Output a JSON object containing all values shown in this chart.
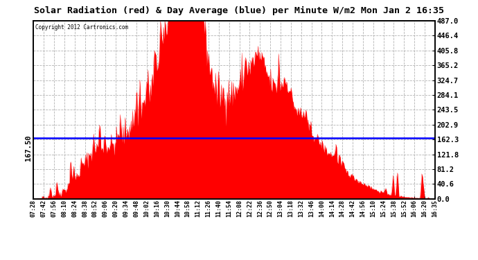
{
  "title": "Solar Radiation (red) & Day Average (blue) per Minute W/m2 Mon Jan 2 16:35",
  "copyright": "Copyright 2012 Cartronics.com",
  "y_min": 0.0,
  "y_max": 487.0,
  "y_ticks": [
    0.0,
    40.6,
    81.2,
    121.8,
    162.3,
    202.9,
    243.5,
    284.1,
    324.7,
    365.2,
    405.8,
    446.4,
    487.0
  ],
  "blue_line_y": 167.5,
  "blue_line_label": "167.50",
  "fill_color": "#FF0000",
  "line_color": "#0000FF",
  "bg_color": "#FFFFFF",
  "grid_color": "#AAAAAA",
  "x_tick_labels": [
    "07:28",
    "07:42",
    "07:56",
    "08:10",
    "08:24",
    "08:38",
    "08:52",
    "09:06",
    "09:20",
    "09:34",
    "09:48",
    "10:02",
    "10:16",
    "10:30",
    "10:44",
    "10:58",
    "11:12",
    "11:26",
    "11:40",
    "11:54",
    "12:08",
    "12:22",
    "12:36",
    "12:50",
    "13:04",
    "13:18",
    "13:32",
    "13:46",
    "14:00",
    "14:14",
    "14:28",
    "14:42",
    "14:56",
    "15:10",
    "15:24",
    "15:38",
    "15:52",
    "16:06",
    "16:20",
    "16:35"
  ],
  "total_minutes": 547
}
